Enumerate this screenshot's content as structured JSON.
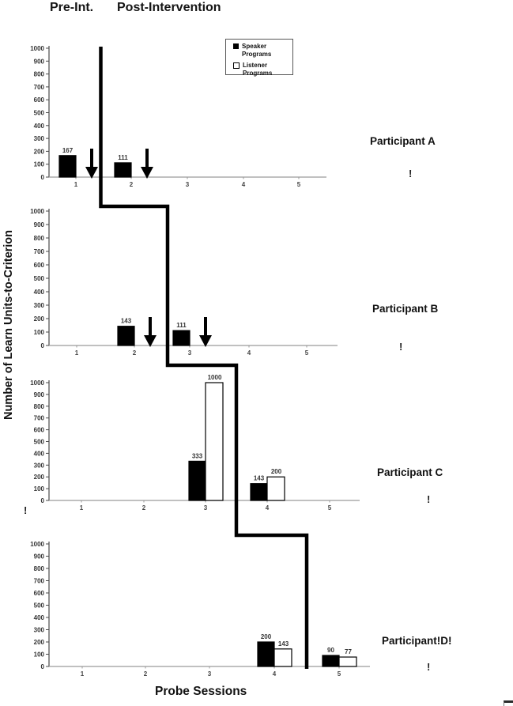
{
  "header": {
    "pre_label": "Pre-Int.",
    "post_label": "Post-Intervention"
  },
  "legend": {
    "items": [
      {
        "label": "Speaker Programs",
        "swatch": "filled-black-square"
      },
      {
        "label": "Listener Programs",
        "swatch": "open-white-square"
      }
    ]
  },
  "axes": {
    "y_label": "Number of Learn Units-to-Criterion",
    "x_label": "Probe Sessions",
    "ylim": [
      0,
      1000
    ],
    "y_tick_step": 100,
    "x_ticks": [
      1,
      2,
      3,
      4,
      5
    ],
    "grid": false,
    "legend_position": "top-center"
  },
  "colors": {
    "speaker_fill": "#000000",
    "listener_fill": "#ffffff",
    "bar_outline": "#000000",
    "x_axis_line": "#9a9a9a",
    "y_axis_line": "#4a4a4a",
    "tick_text": "#333333",
    "phase_line": "#000000"
  },
  "chart_data": [
    {
      "type": "bar",
      "participant_label": "Participant A",
      "exclaim": "!",
      "categories": [
        1,
        2,
        3,
        4,
        5
      ],
      "series": [
        {
          "name": "Speaker Programs",
          "values": [
            167,
            111,
            null,
            null,
            null
          ]
        },
        {
          "name": "Listener Programs",
          "values": [
            null,
            null,
            null,
            null,
            null
          ]
        }
      ],
      "arrows_after_sessions": [
        1,
        2
      ],
      "phase_change_x": 1.45,
      "ylim": [
        0,
        1000
      ]
    },
    {
      "type": "bar",
      "participant_label": "Participant B",
      "exclaim": "!",
      "categories": [
        1,
        2,
        3,
        4,
        5
      ],
      "series": [
        {
          "name": "Speaker Programs",
          "values": [
            null,
            143,
            111,
            null,
            null
          ]
        },
        {
          "name": "Listener Programs",
          "values": [
            null,
            null,
            null,
            null,
            null
          ]
        }
      ],
      "arrows_after_sessions": [
        2,
        3
      ],
      "phase_change_x": 2.6,
      "ylim": [
        0,
        1000
      ]
    },
    {
      "type": "bar",
      "participant_label": "Participant C",
      "exclaim": "!",
      "left_exclaim": "!",
      "categories": [
        1,
        2,
        3,
        4,
        5
      ],
      "series": [
        {
          "name": "Speaker Programs",
          "values": [
            null,
            null,
            333,
            143,
            null
          ]
        },
        {
          "name": "Listener Programs",
          "values": [
            null,
            null,
            1000,
            200,
            null
          ]
        }
      ],
      "arrows_after_sessions": [],
      "phase_change_x": 3.5,
      "ylim": [
        0,
        1000
      ]
    },
    {
      "type": "bar",
      "participant_label": "Participant!D!",
      "exclaim": "!",
      "categories": [
        1,
        2,
        3,
        4,
        5
      ],
      "series": [
        {
          "name": "Speaker Programs",
          "values": [
            null,
            null,
            null,
            200,
            90
          ]
        },
        {
          "name": "Listener Programs",
          "values": [
            null,
            null,
            null,
            143,
            77
          ]
        }
      ],
      "arrows_after_sessions": [],
      "phase_change_x": 4.5,
      "ylim": [
        0,
        1000
      ]
    }
  ]
}
